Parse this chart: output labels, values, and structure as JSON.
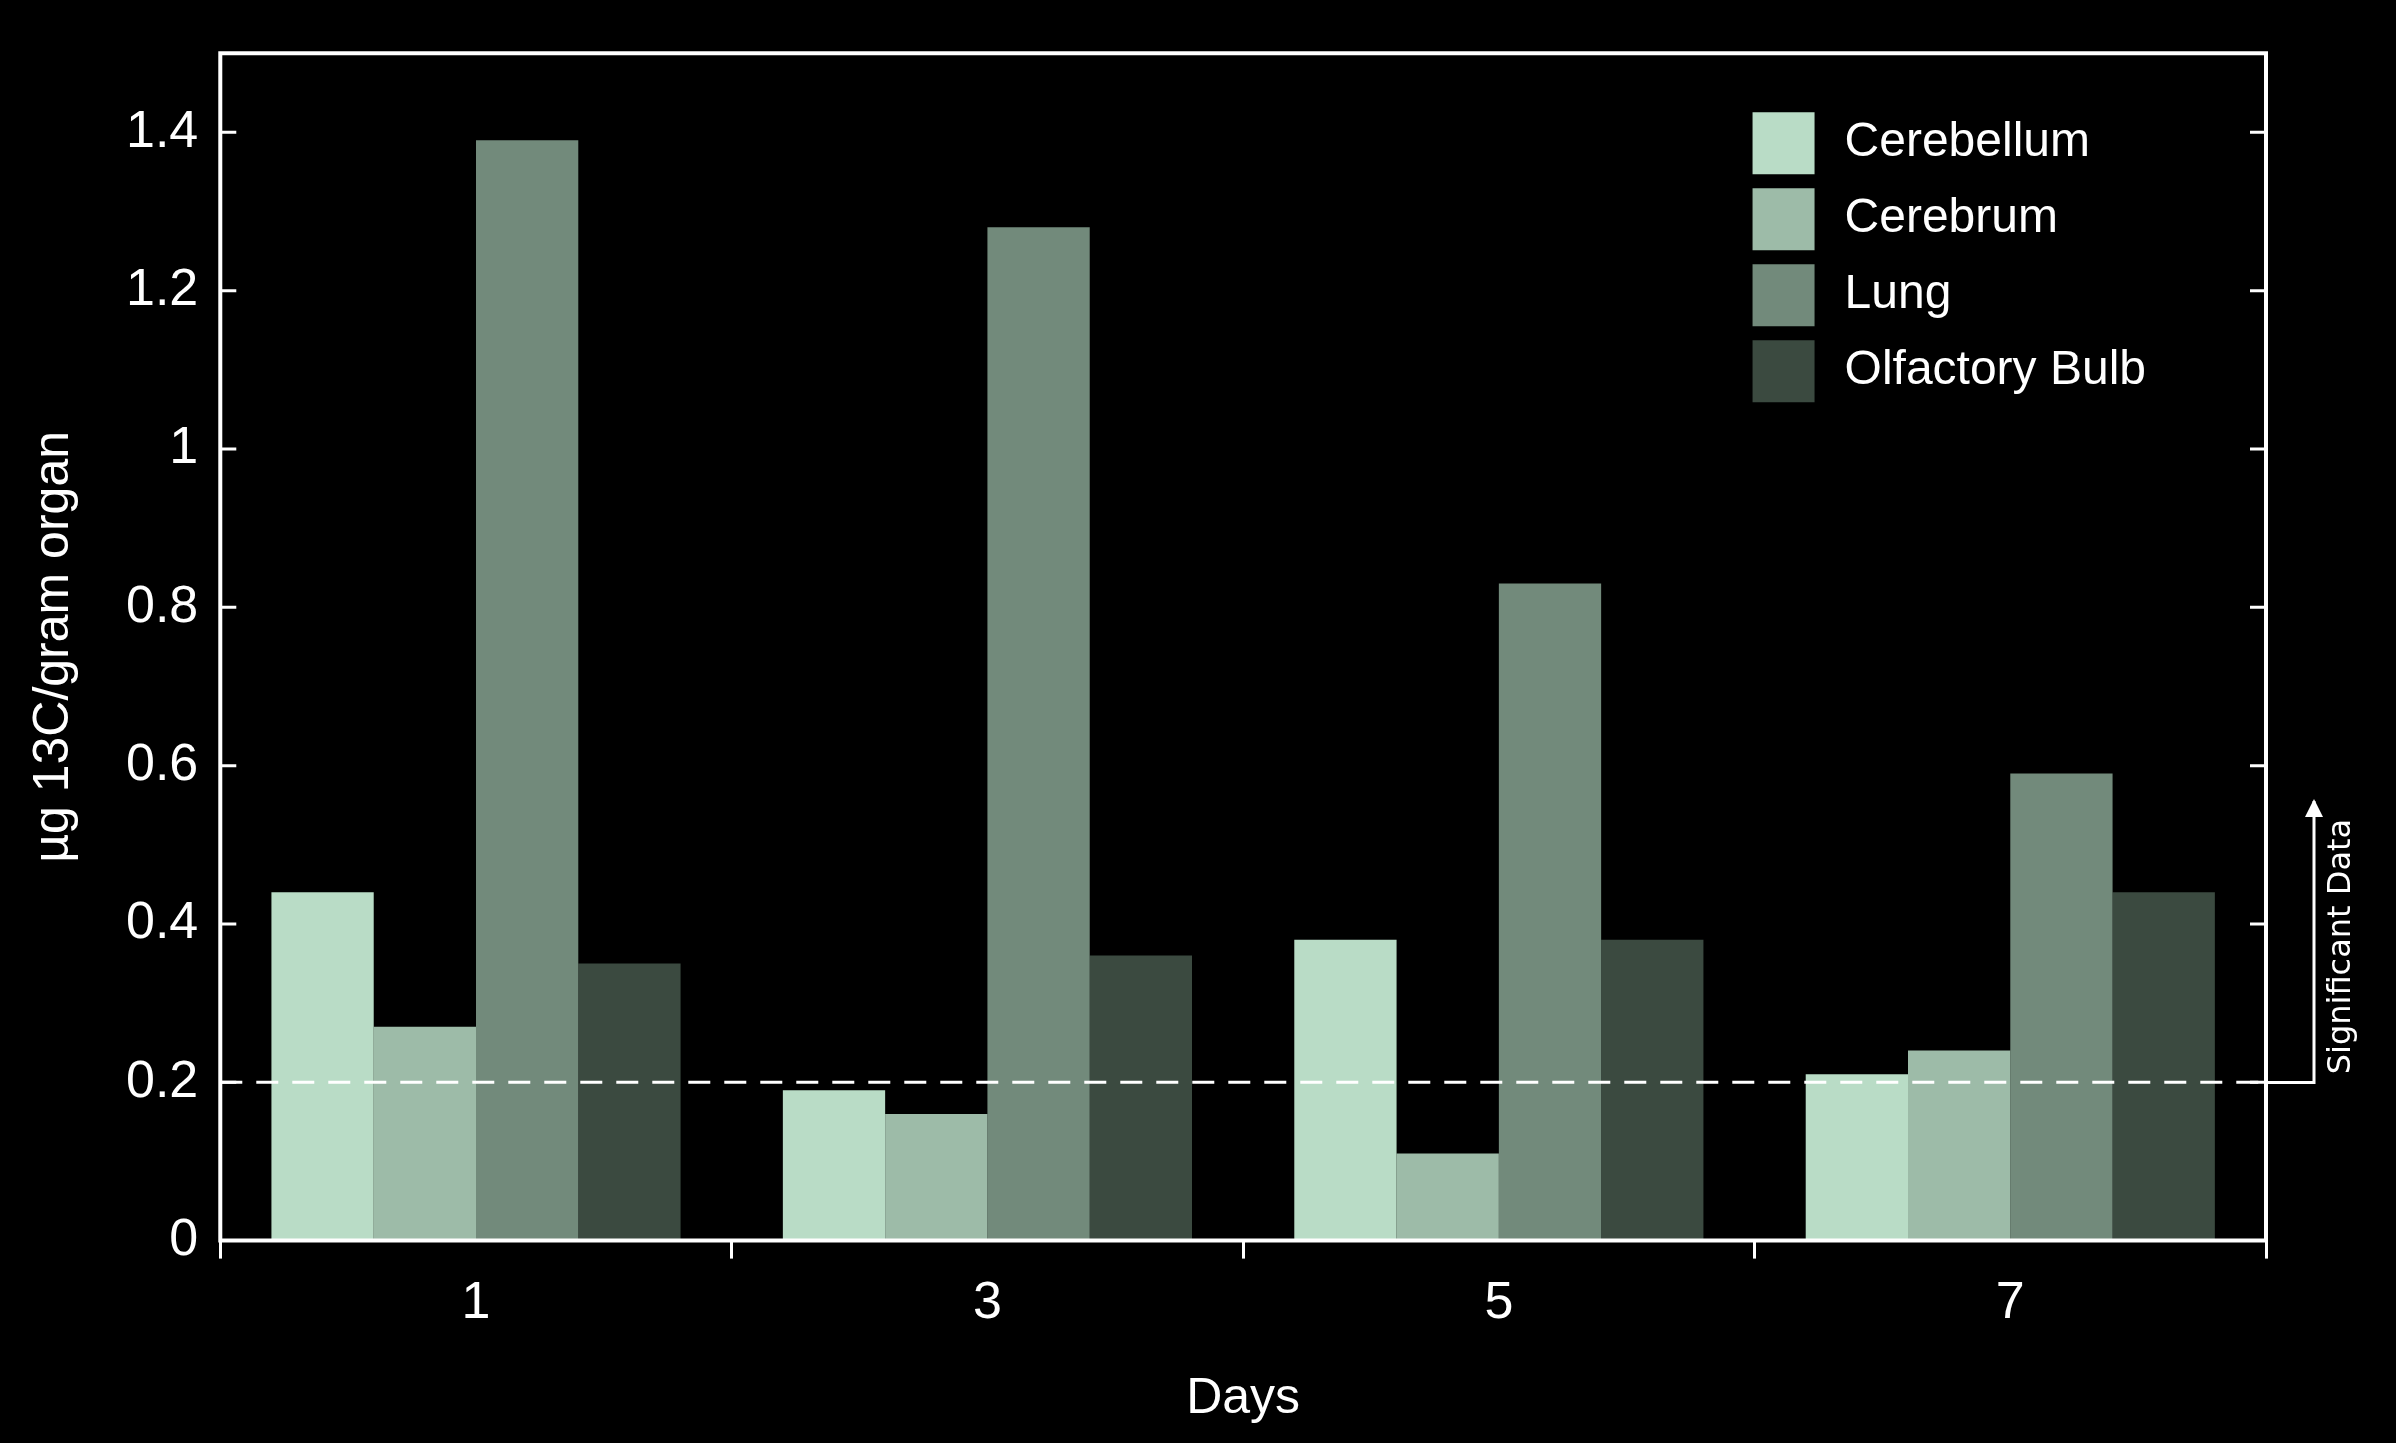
{
  "chart_data": {
    "type": "bar",
    "xlabel": "Days",
    "ylabel": "µg 13C/gram organ",
    "categories": [
      "1",
      "3",
      "5",
      "7"
    ],
    "series": [
      {
        "name": "Cerebellum",
        "color": "#b9dcc6",
        "values": [
          0.44,
          0.19,
          0.38,
          0.21
        ]
      },
      {
        "name": "Cerebrum",
        "color": "#9dbba8",
        "values": [
          0.27,
          0.16,
          0.11,
          0.24
        ]
      },
      {
        "name": "Lung",
        "color": "#728a7b",
        "values": [
          1.39,
          1.28,
          0.83,
          0.59
        ]
      },
      {
        "name": "Olfactory Bulb",
        "color": "#3b4a40",
        "values": [
          0.35,
          0.36,
          0.38,
          0.44
        ]
      }
    ],
    "ylim": [
      0,
      1.5
    ],
    "yticks": [
      0,
      0.2,
      0.4,
      0.6,
      0.8,
      1,
      1.2,
      1.4
    ],
    "ref_lines": [
      {
        "axis": "y",
        "value": 0.2,
        "label": "Significant Data",
        "color": "#ffffff",
        "line_style": "dashed"
      }
    ],
    "legend": "top right",
    "grid": false
  }
}
